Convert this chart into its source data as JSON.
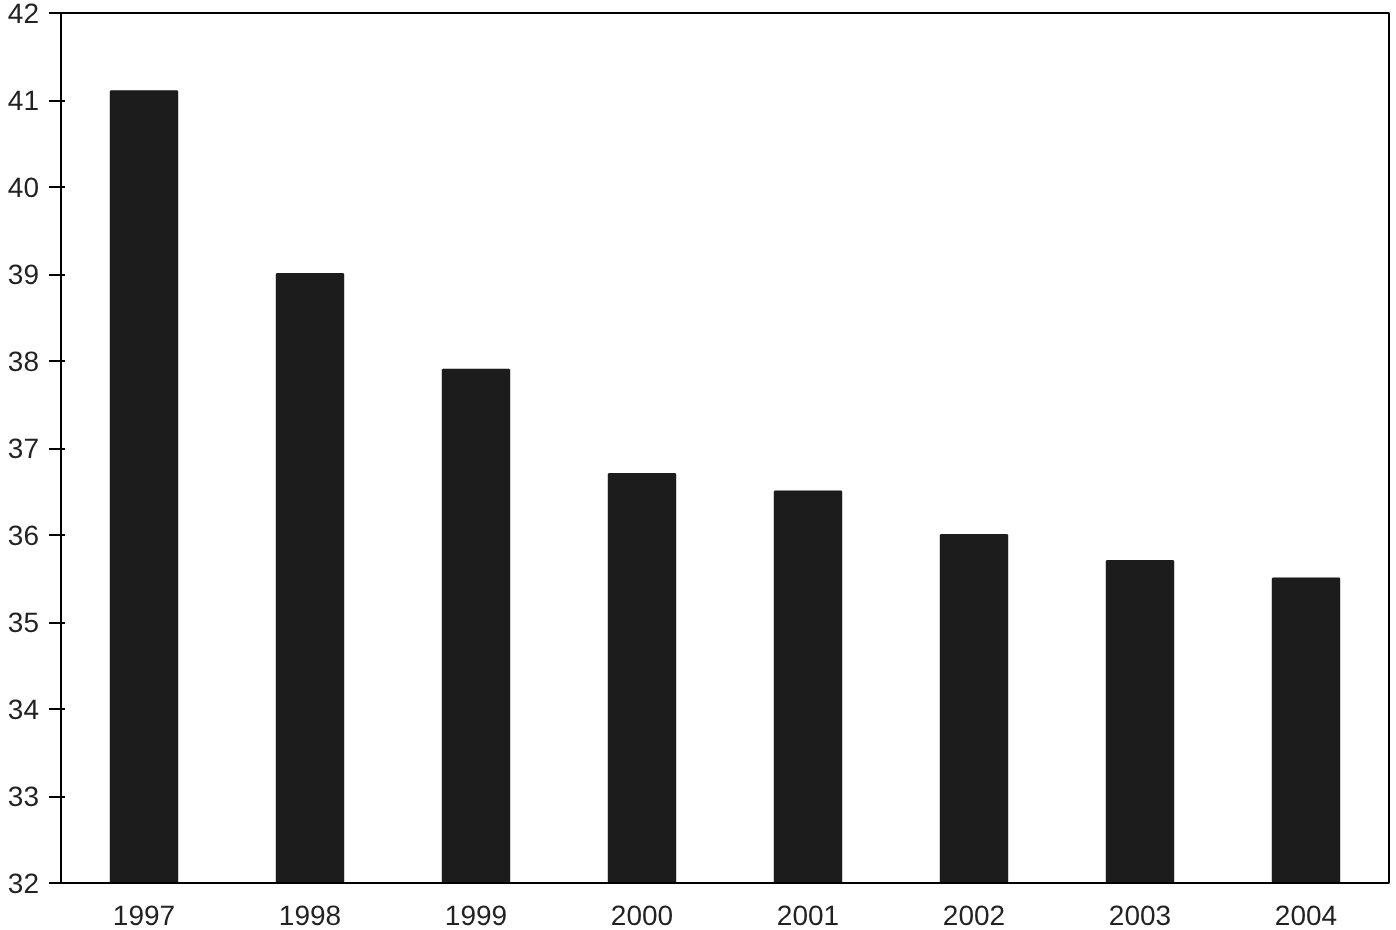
{
  "chart_data": {
    "type": "bar",
    "categories": [
      "1997",
      "1998",
      "1999",
      "2000",
      "2001",
      "2002",
      "2003",
      "2004"
    ],
    "values": [
      41.1,
      39.0,
      37.9,
      36.7,
      36.5,
      36.0,
      35.7,
      35.5
    ],
    "color": "#1c1c1c",
    "ylim": [
      32,
      42
    ],
    "yticks": [
      32,
      33,
      34,
      35,
      36,
      37,
      38,
      39,
      40,
      41,
      42
    ]
  }
}
